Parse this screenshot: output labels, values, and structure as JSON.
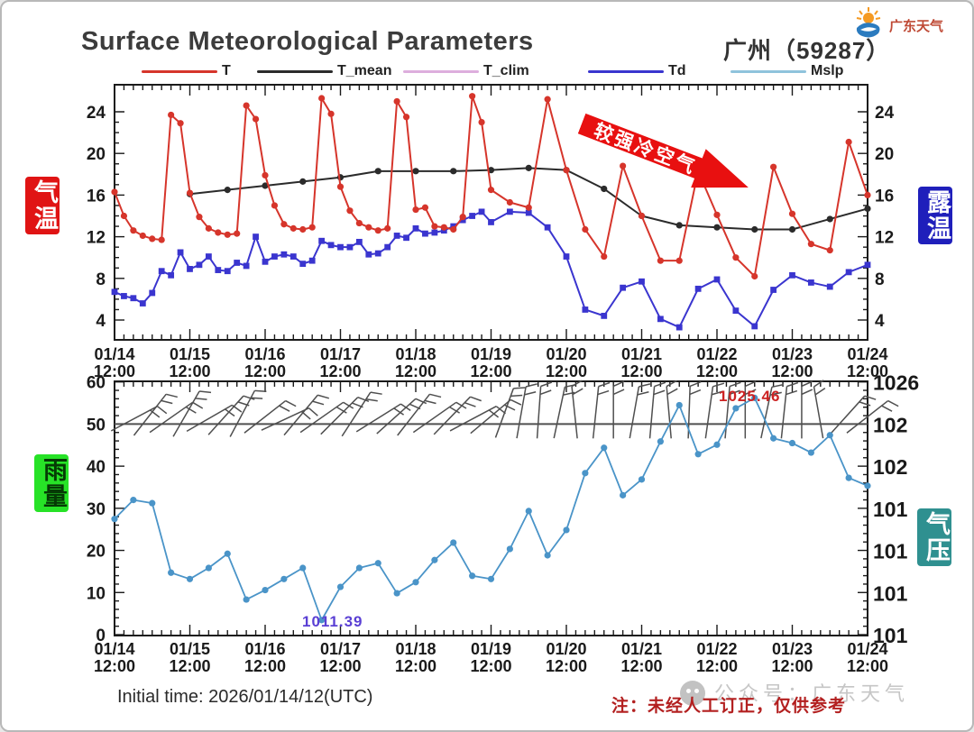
{
  "header": {
    "title": "Surface Meteorological Parameters",
    "station": "广州（59287）",
    "logo_text": "广东天气"
  },
  "legend": {
    "items": [
      {
        "label": "T",
        "color": "#d6352b"
      },
      {
        "label": "T_mean",
        "color": "#2b2b2b"
      },
      {
        "label": "T_clim",
        "color": "#ddaedd"
      },
      {
        "label": "Td",
        "color": "#3a35cf"
      },
      {
        "label": "Mslp",
        "color": "#8fc3dc"
      }
    ]
  },
  "side_labels": {
    "air_temp": "气温",
    "dew_temp": "露温",
    "rain": "雨量",
    "pressure": "气压"
  },
  "footer": {
    "initial_time": "Initial time: 2026/01/14/12(UTC)",
    "note": "注：未经人工订正，仅供参考",
    "watermark": "公众号：广东天气"
  },
  "chart_data": [
    {
      "type": "line",
      "panel": "temperature",
      "title": "Surface Meteorological Parameters",
      "ylim": [
        4,
        24
      ],
      "y_ticks": [
        4,
        8,
        12,
        16,
        20,
        24
      ],
      "x_tick_labels": [
        "01/14",
        "01/15",
        "01/16",
        "01/17",
        "01/18",
        "01/19",
        "01/20",
        "01/21",
        "01/22",
        "01/23",
        "01/24"
      ],
      "x_tick_time": "12:00",
      "annotation_arrow": {
        "text": "较强冷空气",
        "color": "#e81010"
      },
      "series": [
        {
          "name": "T",
          "color": "#d6352b",
          "marker": "circle",
          "points": [
            [
              0,
              16.3
            ],
            [
              0.125,
              14.0
            ],
            [
              0.25,
              12.6
            ],
            [
              0.375,
              12.1
            ],
            [
              0.5,
              11.8
            ],
            [
              0.625,
              11.7
            ],
            [
              0.75,
              23.7
            ],
            [
              0.875,
              22.9
            ],
            [
              1,
              16.2
            ],
            [
              1.125,
              13.9
            ],
            [
              1.25,
              12.8
            ],
            [
              1.375,
              12.4
            ],
            [
              1.5,
              12.2
            ],
            [
              1.625,
              12.3
            ],
            [
              1.75,
              24.6
            ],
            [
              1.875,
              23.3
            ],
            [
              2,
              17.9
            ],
            [
              2.125,
              15.0
            ],
            [
              2.25,
              13.2
            ],
            [
              2.375,
              12.8
            ],
            [
              2.5,
              12.7
            ],
            [
              2.625,
              12.9
            ],
            [
              2.75,
              25.3
            ],
            [
              2.875,
              23.8
            ],
            [
              3,
              16.8
            ],
            [
              3.125,
              14.5
            ],
            [
              3.25,
              13.3
            ],
            [
              3.375,
              12.9
            ],
            [
              3.5,
              12.6
            ],
            [
              3.625,
              12.8
            ],
            [
              3.75,
              25.0
            ],
            [
              3.875,
              23.5
            ],
            [
              4,
              14.6
            ],
            [
              4.125,
              14.8
            ],
            [
              4.25,
              13.0
            ],
            [
              4.375,
              12.9
            ],
            [
              4.5,
              12.7
            ],
            [
              4.625,
              13.9
            ],
            [
              4.75,
              25.5
            ],
            [
              4.875,
              23.0
            ],
            [
              5,
              16.5
            ],
            [
              5.25,
              15.3
            ],
            [
              5.5,
              14.8
            ],
            [
              5.75,
              25.2
            ],
            [
              6,
              18.4
            ],
            [
              6.25,
              12.7
            ],
            [
              6.5,
              10.1
            ],
            [
              6.75,
              18.8
            ],
            [
              7,
              14.0
            ],
            [
              7.25,
              9.7
            ],
            [
              7.5,
              9.7
            ],
            [
              7.75,
              18.3
            ],
            [
              8,
              14.1
            ],
            [
              8.25,
              10.0
            ],
            [
              8.5,
              8.2
            ],
            [
              8.75,
              18.7
            ],
            [
              9,
              14.2
            ],
            [
              9.25,
              11.3
            ],
            [
              9.5,
              10.7
            ],
            [
              9.75,
              21.1
            ],
            [
              10,
              16.0
            ]
          ]
        },
        {
          "name": "T_mean",
          "color": "#2b2b2b",
          "marker": "circle",
          "points": [
            [
              1,
              16.1
            ],
            [
              1.5,
              16.5
            ],
            [
              2,
              16.9
            ],
            [
              2.5,
              17.3
            ],
            [
              3,
              17.7
            ],
            [
              3.5,
              18.3
            ],
            [
              4,
              18.3
            ],
            [
              4.5,
              18.3
            ],
            [
              5,
              18.4
            ],
            [
              5.5,
              18.6
            ],
            [
              6,
              18.4
            ],
            [
              6.5,
              16.6
            ],
            [
              7,
              14.0
            ],
            [
              7.5,
              13.1
            ],
            [
              8,
              12.9
            ],
            [
              8.5,
              12.7
            ],
            [
              9,
              12.7
            ],
            [
              9.5,
              13.7
            ],
            [
              10,
              14.7
            ]
          ]
        },
        {
          "name": "T_clim",
          "color": "#ddaedd",
          "marker": "none",
          "points": []
        },
        {
          "name": "Td",
          "color": "#3a35cf",
          "marker": "square",
          "points": [
            [
              0,
              6.7
            ],
            [
              0.125,
              6.3
            ],
            [
              0.25,
              6.1
            ],
            [
              0.375,
              5.6
            ],
            [
              0.5,
              6.6
            ],
            [
              0.625,
              8.7
            ],
            [
              0.75,
              8.3
            ],
            [
              0.875,
              10.5
            ],
            [
              1,
              8.9
            ],
            [
              1.125,
              9.3
            ],
            [
              1.25,
              10.1
            ],
            [
              1.375,
              8.8
            ],
            [
              1.5,
              8.7
            ],
            [
              1.625,
              9.5
            ],
            [
              1.75,
              9.2
            ],
            [
              1.875,
              12.0
            ],
            [
              2,
              9.6
            ],
            [
              2.125,
              10.1
            ],
            [
              2.25,
              10.3
            ],
            [
              2.375,
              10.1
            ],
            [
              2.5,
              9.4
            ],
            [
              2.625,
              9.7
            ],
            [
              2.75,
              11.6
            ],
            [
              2.875,
              11.2
            ],
            [
              3,
              11.0
            ],
            [
              3.125,
              11.0
            ],
            [
              3.25,
              11.5
            ],
            [
              3.375,
              10.3
            ],
            [
              3.5,
              10.4
            ],
            [
              3.625,
              11.0
            ],
            [
              3.75,
              12.1
            ],
            [
              3.875,
              11.9
            ],
            [
              4,
              12.8
            ],
            [
              4.125,
              12.3
            ],
            [
              4.25,
              12.4
            ],
            [
              4.375,
              12.6
            ],
            [
              4.5,
              13.0
            ],
            [
              4.625,
              13.6
            ],
            [
              4.75,
              14.0
            ],
            [
              4.875,
              14.4
            ],
            [
              5,
              13.4
            ],
            [
              5.25,
              14.4
            ],
            [
              5.5,
              14.3
            ],
            [
              5.75,
              12.9
            ],
            [
              6,
              10.1
            ],
            [
              6.25,
              5.0
            ],
            [
              6.5,
              4.4
            ],
            [
              6.75,
              7.1
            ],
            [
              7,
              7.7
            ],
            [
              7.25,
              4.1
            ],
            [
              7.5,
              3.3
            ],
            [
              7.75,
              7.0
            ],
            [
              8,
              7.9
            ],
            [
              8.25,
              4.9
            ],
            [
              8.5,
              3.4
            ],
            [
              8.75,
              6.9
            ],
            [
              9,
              8.3
            ],
            [
              9.25,
              7.6
            ],
            [
              9.5,
              7.2
            ],
            [
              9.75,
              8.6
            ],
            [
              10,
              9.3
            ]
          ]
        }
      ]
    },
    {
      "type": "line",
      "panel": "rain_pressure",
      "y_left_ticks": [
        0,
        10,
        20,
        30,
        40,
        50,
        60
      ],
      "y_right_tick_labels": [
        "1026",
        "102",
        "102",
        "101",
        "101",
        "101",
        "101"
      ],
      "x_tick_labels": [
        "01/14",
        "01/15",
        "01/16",
        "01/17",
        "01/18",
        "01/19",
        "01/20",
        "01/21",
        "01/22",
        "01/23",
        "01/24"
      ],
      "x_tick_time": "12:00",
      "annotations": [
        {
          "text": "1025.46",
          "color": "#cc2222"
        },
        {
          "text": "1011.39",
          "color": "#5a3fd4"
        }
      ],
      "series": [
        {
          "name": "Mslp",
          "color": "#4a94c8",
          "marker": "circle",
          "points": [
            [
              0,
              1017.8
            ],
            [
              0.25,
              1019.0
            ],
            [
              0.5,
              1018.8
            ],
            [
              0.75,
              1014.4
            ],
            [
              1,
              1014.0
            ],
            [
              1.25,
              1014.7
            ],
            [
              1.5,
              1015.6
            ],
            [
              1.75,
              1012.7
            ],
            [
              2,
              1013.3
            ],
            [
              2.25,
              1014.0
            ],
            [
              2.5,
              1014.7
            ],
            [
              2.75,
              1011.4
            ],
            [
              3,
              1013.5
            ],
            [
              3.25,
              1014.7
            ],
            [
              3.5,
              1015.0
            ],
            [
              3.75,
              1013.1
            ],
            [
              4,
              1013.8
            ],
            [
              4.25,
              1015.2
            ],
            [
              4.5,
              1016.3
            ],
            [
              4.75,
              1014.2
            ],
            [
              5,
              1014.0
            ],
            [
              5.25,
              1015.9
            ],
            [
              5.5,
              1018.3
            ],
            [
              5.75,
              1015.5
            ],
            [
              6,
              1017.1
            ],
            [
              6.25,
              1020.7
            ],
            [
              6.5,
              1022.3
            ],
            [
              6.75,
              1019.3
            ],
            [
              7,
              1020.3
            ],
            [
              7.25,
              1022.7
            ],
            [
              7.5,
              1025.0
            ],
            [
              7.75,
              1021.9
            ],
            [
              8,
              1022.5
            ],
            [
              8.25,
              1024.8
            ],
            [
              8.5,
              1025.46
            ],
            [
              8.75,
              1022.9
            ],
            [
              9,
              1022.6
            ],
            [
              9.25,
              1022.0
            ],
            [
              9.5,
              1023.1
            ],
            [
              9.75,
              1020.4
            ],
            [
              10,
              1019.9
            ]
          ]
        }
      ],
      "wind_barbs": {
        "color": "#4f4f4f",
        "baseline_left_value": 50,
        "barbs": [
          {
            "x": 0.125,
            "dir": 62
          },
          {
            "x": 0.375,
            "dir": 38
          },
          {
            "x": 0.625,
            "dir": 55
          },
          {
            "x": 0.875,
            "dir": 30
          },
          {
            "x": 1.125,
            "dir": 60
          },
          {
            "x": 1.375,
            "dir": 42
          },
          {
            "x": 1.625,
            "dir": 28
          },
          {
            "x": 1.875,
            "dir": 52
          },
          {
            "x": 2.125,
            "dir": 65
          },
          {
            "x": 2.375,
            "dir": 40
          },
          {
            "x": 2.625,
            "dir": 55
          },
          {
            "x": 2.875,
            "dir": 45
          },
          {
            "x": 3.125,
            "dir": 33
          },
          {
            "x": 3.375,
            "dir": 58
          },
          {
            "x": 3.625,
            "dir": 48
          },
          {
            "x": 3.875,
            "dir": 38
          },
          {
            "x": 4.125,
            "dir": 55
          },
          {
            "x": 4.375,
            "dir": 44
          },
          {
            "x": 4.625,
            "dir": 62
          },
          {
            "x": 4.875,
            "dir": 50
          },
          {
            "x": 5.125,
            "dir": 20
          },
          {
            "x": 5.375,
            "dir": 10
          },
          {
            "x": 5.625,
            "dir": 4
          },
          {
            "x": 5.875,
            "dir": 12
          },
          {
            "x": 6.125,
            "dir": -6
          },
          {
            "x": 6.375,
            "dir": 6
          },
          {
            "x": 6.625,
            "dir": 0
          },
          {
            "x": 6.875,
            "dir": 10
          },
          {
            "x": 7.125,
            "dir": 5
          },
          {
            "x": 7.375,
            "dir": -5
          },
          {
            "x": 7.625,
            "dir": 2
          },
          {
            "x": 7.875,
            "dir": 8
          },
          {
            "x": 8.125,
            "dir": 5
          },
          {
            "x": 8.375,
            "dir": 0
          },
          {
            "x": 8.625,
            "dir": 12
          },
          {
            "x": 8.875,
            "dir": 6
          },
          {
            "x": 9.125,
            "dir": 0
          },
          {
            "x": 9.375,
            "dir": -10
          },
          {
            "x": 9.625,
            "dir": 42
          },
          {
            "x": 9.875,
            "dir": 52
          }
        ]
      }
    }
  ]
}
